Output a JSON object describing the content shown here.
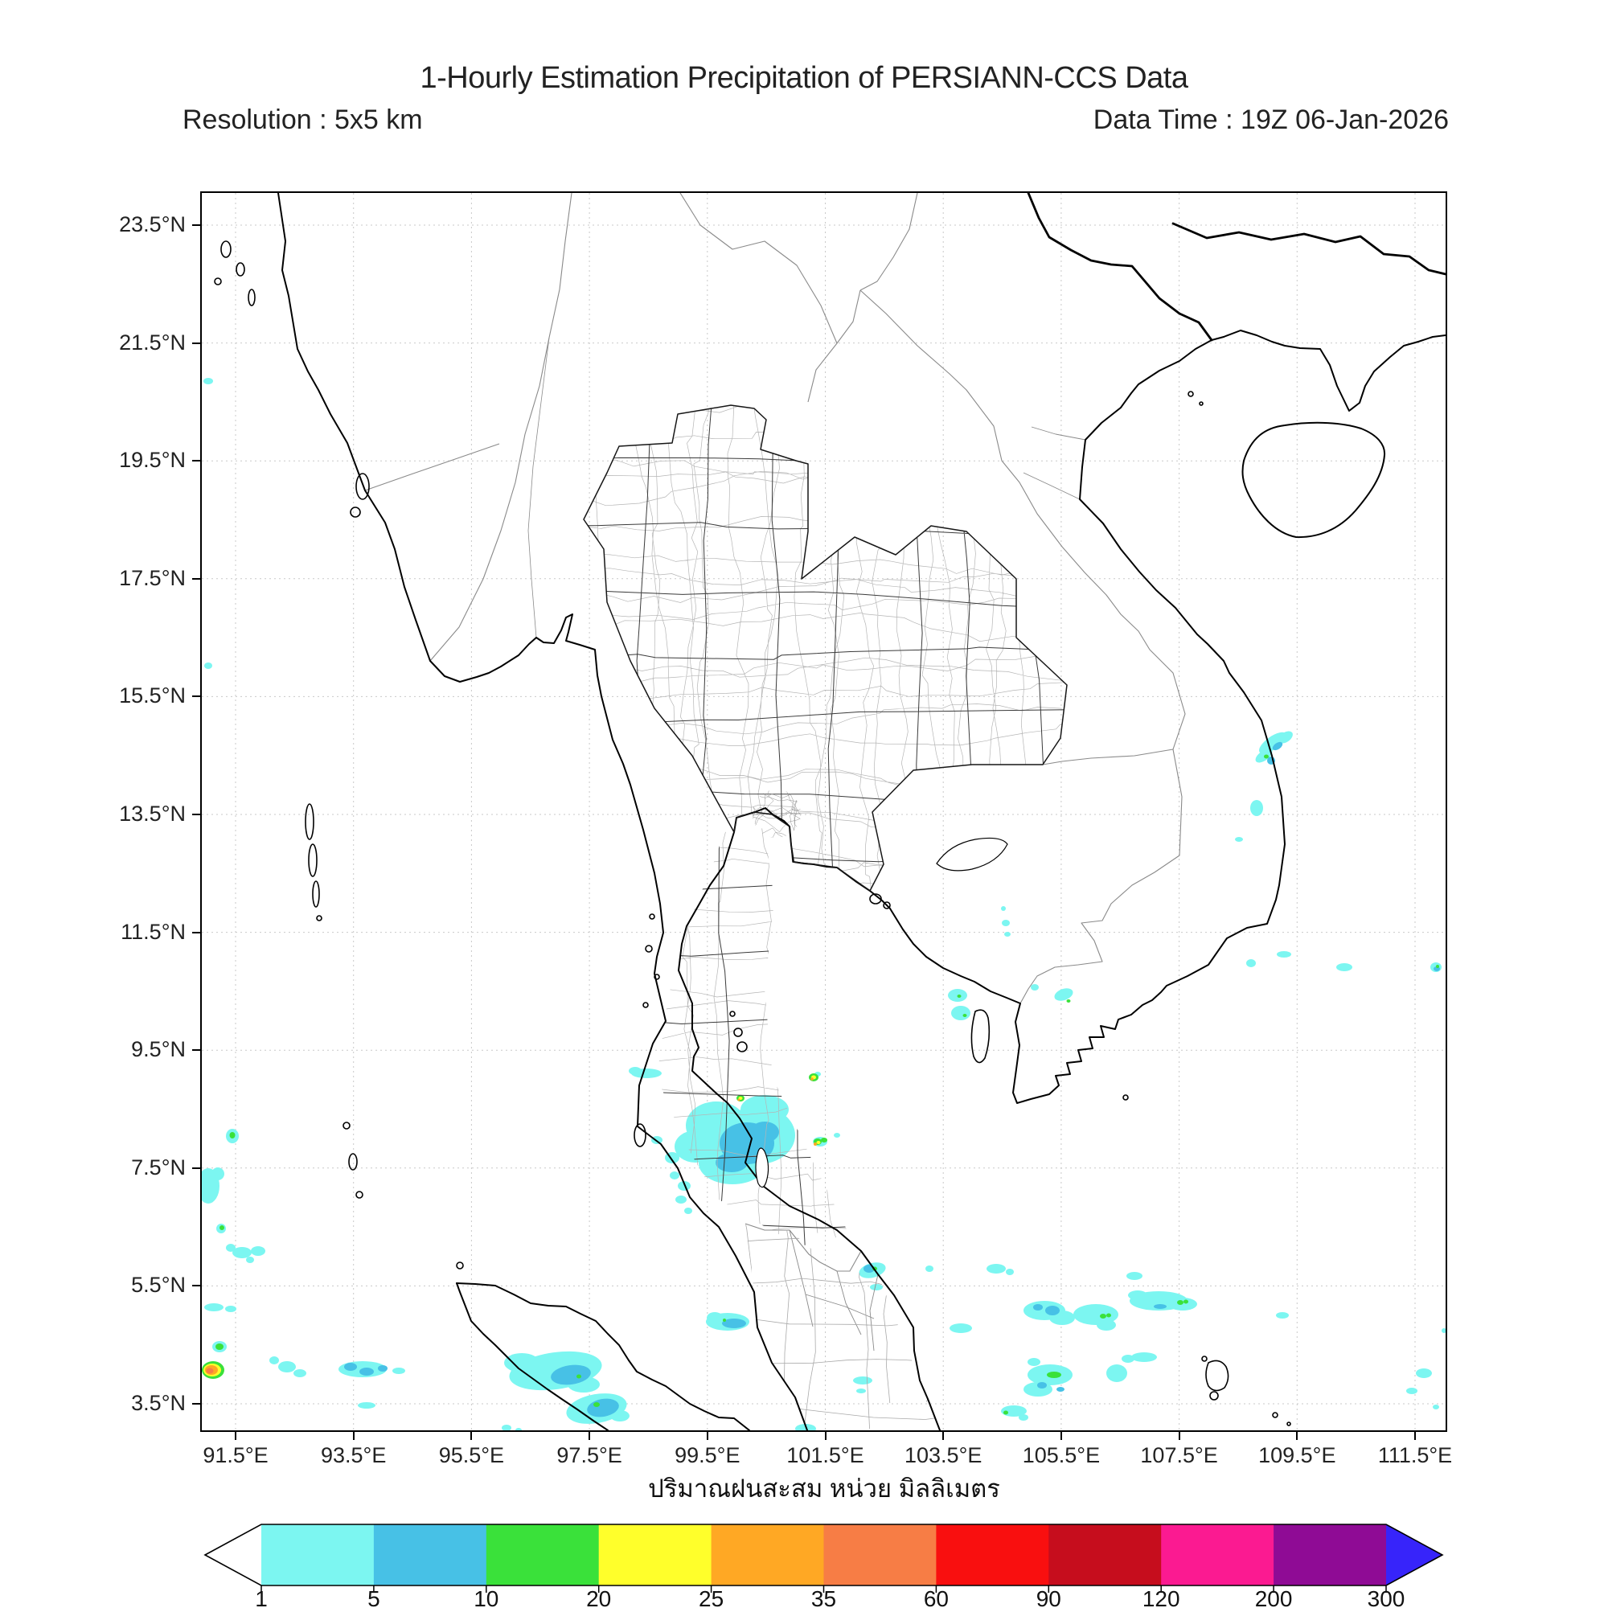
{
  "header": {
    "title": "1-Hourly Estimation Precipitation of PERSIANN-CCS Data",
    "resolution": "Resolution : 5x5 km",
    "data_time": "Data Time : 19Z 06-Jan-2026"
  },
  "map": {
    "lat_ticks": [
      "23.5°N",
      "21.5°N",
      "19.5°N",
      "17.5°N",
      "15.5°N",
      "13.5°N",
      "11.5°N",
      "9.5°N",
      "7.5°N",
      "5.5°N",
      "3.5°N"
    ],
    "lon_ticks": [
      "91.5°E",
      "93.5°E",
      "95.5°E",
      "97.5°E",
      "99.5°E",
      "101.5°E",
      "103.5°E",
      "105.5°E",
      "107.5°E",
      "109.5°E",
      "111.5°E"
    ],
    "xlabel": "ปริมาณฝนสะสม หน่วย มิลลิเมตร"
  },
  "legend": {
    "tick_labels": [
      "1",
      "5",
      "10",
      "20",
      "25",
      "35",
      "60",
      "90",
      "120",
      "200",
      "300"
    ],
    "segment_keys": [
      "c1",
      "c2",
      "c3",
      "c4",
      "c5",
      "c6",
      "c7",
      "c8",
      "c9",
      "c10"
    ],
    "colors": {
      "c1": "#7cf6f1",
      "c2": "#47c1e6",
      "c3": "#3ae13a",
      "c4": "#ffff2b",
      "c5": "#ffa824",
      "c6": "#f77d45",
      "c7": "#f90f0f",
      "c8": "#c60d1d",
      "c9": "#fb1a91",
      "c10": "#8f0b95"
    },
    "under_color": "#ffffff",
    "over_color": "#3724fa",
    "line_color": "#000000"
  },
  "precip": {
    "cells": [
      [
        640,
        1160,
        38,
        30,
        "c1",
        0
      ],
      [
        692,
        1172,
        46,
        36,
        "c1",
        0
      ],
      [
        660,
        1207,
        42,
        26,
        "c1",
        0
      ],
      [
        614,
        1186,
        26,
        20,
        "c1",
        0
      ],
      [
        700,
        1140,
        30,
        18,
        "c1",
        0
      ],
      [
        600,
        1235,
        8,
        6,
        "c1",
        0
      ],
      [
        588,
        1222,
        6,
        5,
        "c1",
        0
      ],
      [
        596,
        1252,
        7,
        5,
        "c1",
        0
      ],
      [
        605,
        1266,
        5,
        4,
        "c1",
        0
      ],
      [
        585,
        1200,
        9,
        7,
        "c1",
        0
      ],
      [
        566,
        1178,
        7,
        5,
        "c1",
        0
      ],
      [
        553,
        1095,
        19,
        6,
        "c1",
        0
      ],
      [
        539,
        1092,
        8,
        5,
        "c1",
        0
      ],
      [
        766,
        1096,
        4,
        3,
        "c1",
        0
      ],
      [
        769,
        1180,
        9,
        6,
        "c1",
        0
      ],
      [
        790,
        1172,
        4,
        3,
        "c1",
        0
      ],
      [
        834,
        1340,
        17,
        9,
        "c1",
        -15
      ],
      [
        839,
        1361,
        8,
        4,
        "c1",
        0
      ],
      [
        654,
        1404,
        27,
        11,
        "c1",
        0
      ],
      [
        638,
        1399,
        10,
        7,
        "c1",
        0
      ],
      [
        440,
        1465,
        58,
        23,
        "c1",
        -8
      ],
      [
        398,
        1455,
        22,
        12,
        "c1",
        0
      ],
      [
        475,
        1482,
        20,
        10,
        "c1",
        0
      ],
      [
        491,
        1512,
        38,
        18,
        "c1",
        -10
      ],
      [
        520,
        1521,
        12,
        7,
        "c1",
        0
      ],
      [
        751,
        1537,
        13,
        6,
        "c1",
        0
      ],
      [
        379,
        1536,
        6,
        4,
        "c1",
        0
      ],
      [
        394,
        1539,
        4,
        3,
        "c1",
        0
      ],
      [
        38,
        1173,
        8,
        9,
        "c1",
        0
      ],
      [
        8,
        1235,
        14,
        22,
        "c1",
        0
      ],
      [
        20,
        1220,
        8,
        8,
        "c1",
        0
      ],
      [
        24,
        1288,
        6,
        6,
        "c1",
        0
      ],
      [
        50,
        1318,
        12,
        7,
        "c1",
        0
      ],
      [
        70,
        1316,
        9,
        6,
        "c1",
        0
      ],
      [
        36,
        1312,
        6,
        5,
        "c1",
        0
      ],
      [
        60,
        1327,
        5,
        4,
        "c1",
        0
      ],
      [
        15,
        1386,
        12,
        5,
        "c1",
        0
      ],
      [
        36,
        1388,
        7,
        4,
        "c1",
        0
      ],
      [
        22,
        1435,
        9,
        7,
        "c1",
        0
      ],
      [
        106,
        1460,
        11,
        7,
        "c1",
        0
      ],
      [
        122,
        1468,
        8,
        5,
        "c1",
        0
      ],
      [
        90,
        1452,
        6,
        5,
        "c1",
        0
      ],
      [
        200,
        1463,
        30,
        10,
        "c1",
        0
      ],
      [
        245,
        1465,
        8,
        4,
        "c1",
        0
      ],
      [
        1048,
        1390,
        26,
        12,
        "c1",
        0
      ],
      [
        1070,
        1399,
        16,
        9,
        "c1",
        0
      ],
      [
        1112,
        1395,
        28,
        13,
        "c1",
        0
      ],
      [
        1125,
        1408,
        12,
        7,
        "c1",
        0
      ],
      [
        1190,
        1378,
        36,
        12,
        "c1",
        0
      ],
      [
        1220,
        1382,
        18,
        8,
        "c1",
        0
      ],
      [
        1164,
        1371,
        12,
        6,
        "c1",
        0
      ],
      [
        1055,
        1470,
        28,
        13,
        "c1",
        0
      ],
      [
        1040,
        1488,
        18,
        9,
        "c1",
        0
      ],
      [
        1035,
        1454,
        8,
        5,
        "c1",
        0
      ],
      [
        1138,
        1468,
        13,
        11,
        "c1",
        0
      ],
      [
        1152,
        1450,
        8,
        5,
        "c1",
        0
      ],
      [
        1172,
        1448,
        16,
        6,
        "c1",
        0
      ],
      [
        1010,
        1515,
        16,
        7,
        "c1",
        0
      ],
      [
        1022,
        1523,
        6,
        4,
        "c1",
        0
      ],
      [
        944,
        1412,
        14,
        6,
        "c1",
        0
      ],
      [
        988,
        1338,
        12,
        6,
        "c1",
        0
      ],
      [
        1005,
        1342,
        5,
        4,
        "c1",
        0
      ],
      [
        1160,
        1347,
        10,
        5,
        "c1",
        0
      ],
      [
        905,
        1338,
        5,
        4,
        "c1",
        0
      ],
      [
        1344,
        1396,
        8,
        4,
        "c1",
        0
      ],
      [
        940,
        998,
        12,
        8,
        "c1",
        0
      ],
      [
        944,
        1020,
        12,
        9,
        "c1",
        0
      ],
      [
        1036,
        988,
        5,
        4,
        "c1",
        0
      ],
      [
        1072,
        997,
        12,
        7,
        "c1",
        -20
      ],
      [
        1000,
        908,
        5,
        4,
        "c1",
        0
      ],
      [
        1002,
        922,
        4,
        3,
        "c1",
        0
      ],
      [
        997,
        890,
        3,
        3,
        "c1",
        0
      ],
      [
        1332,
        684,
        20,
        8,
        "c1",
        -35
      ],
      [
        1348,
        677,
        10,
        6,
        "c1",
        -35
      ],
      [
        1321,
        700,
        12,
        6,
        "c1",
        -35
      ],
      [
        1312,
        765,
        8,
        10,
        "c1",
        0
      ],
      [
        1290,
        804,
        5,
        3,
        "c1",
        0
      ],
      [
        1305,
        958,
        6,
        5,
        "c1",
        0
      ],
      [
        1346,
        947,
        9,
        4,
        "c1",
        0
      ],
      [
        1421,
        963,
        10,
        5,
        "c1",
        0
      ],
      [
        1535,
        963,
        7,
        6,
        "c1",
        0
      ],
      [
        822,
        1477,
        12,
        5,
        "c1",
        0
      ],
      [
        820,
        1490,
        6,
        3,
        "c1",
        0
      ],
      [
        8,
        234,
        6,
        4,
        "c1",
        0
      ],
      [
        8,
        588,
        5,
        4,
        "c1",
        0
      ],
      [
        205,
        1508,
        11,
        4,
        "c1",
        0
      ],
      [
        1520,
        1468,
        10,
        6,
        "c1",
        0
      ],
      [
        1505,
        1490,
        7,
        4,
        "c1",
        0
      ],
      [
        1535,
        1510,
        4,
        3,
        "c1",
        0
      ],
      [
        1545,
        1415,
        3,
        3,
        "c1",
        0
      ],
      [
        678,
        1182,
        34,
        26,
        "c2",
        0
      ],
      [
        700,
        1168,
        18,
        13,
        "c2",
        0
      ],
      [
        659,
        1206,
        20,
        12,
        "c2",
        0
      ],
      [
        830,
        1338,
        7,
        5,
        "c2",
        0
      ],
      [
        662,
        1406,
        15,
        6,
        "c2",
        0
      ],
      [
        459,
        1470,
        25,
        12,
        "c2",
        -8
      ],
      [
        499,
        1511,
        20,
        11,
        "c2",
        -10
      ],
      [
        185,
        1460,
        8,
        5,
        "c2",
        0
      ],
      [
        205,
        1466,
        9,
        5,
        "c2",
        0
      ],
      [
        225,
        1462,
        6,
        4,
        "c2",
        0
      ],
      [
        1058,
        1390,
        9,
        6,
        "c2",
        0
      ],
      [
        1040,
        1386,
        6,
        4,
        "c2",
        0
      ],
      [
        1192,
        1385,
        8,
        3,
        "c2",
        0
      ],
      [
        1045,
        1483,
        6,
        4,
        "c2",
        0
      ],
      [
        1068,
        1488,
        5,
        3,
        "c2",
        0
      ],
      [
        1338,
        688,
        7,
        4,
        "c2",
        -35
      ],
      [
        1330,
        706,
        5,
        5,
        "c2",
        0
      ],
      [
        1536,
        965,
        4,
        3,
        "c2",
        0
      ],
      [
        670,
        1126,
        5,
        4,
        "c3",
        0
      ],
      [
        766,
        1180,
        5,
        4,
        "c3",
        0
      ],
      [
        774,
        1178,
        4,
        3,
        "c3",
        0
      ],
      [
        761,
        1100,
        6,
        5,
        "c3",
        0
      ],
      [
        837,
        1338,
        3,
        2.5,
        "c3",
        0
      ],
      [
        650,
        1402,
        2,
        2,
        "c3",
        0
      ],
      [
        469,
        1472,
        3,
        2.5,
        "c3",
        0
      ],
      [
        491,
        1507,
        4,
        3,
        "c3",
        0
      ],
      [
        38,
        1172,
        3.5,
        4,
        "c3",
        0
      ],
      [
        25,
        1287,
        3,
        3,
        "c3",
        0
      ],
      [
        22,
        1435,
        5,
        4,
        "c3",
        0
      ],
      [
        14,
        1464,
        14,
        11,
        "c3",
        0
      ],
      [
        1121,
        1397,
        4,
        3,
        "c3",
        0
      ],
      [
        1128,
        1396,
        3,
        2.5,
        "c3",
        0
      ],
      [
        1217,
        1380,
        4,
        3,
        "c3",
        0
      ],
      [
        1224,
        1379,
        3,
        2.5,
        "c3",
        0
      ],
      [
        1060,
        1470,
        9,
        4,
        "c3",
        0
      ],
      [
        1000,
        1517,
        3,
        2.5,
        "c3",
        0
      ],
      [
        942,
        999,
        2.5,
        2,
        "c3",
        0
      ],
      [
        949,
        1023,
        2.5,
        2,
        "c3",
        0
      ],
      [
        1078,
        1005,
        2.5,
        2,
        "c3",
        0
      ],
      [
        1324,
        701,
        3,
        2.5,
        "c3",
        0
      ],
      [
        1537,
        962,
        2,
        2,
        "c3",
        0
      ],
      [
        670,
        1126,
        2.5,
        2,
        "c4",
        0
      ],
      [
        767,
        1181,
        2.5,
        2,
        "c4",
        0
      ],
      [
        761,
        1100,
        3,
        2.5,
        "c4",
        0
      ],
      [
        13,
        1464,
        11,
        8,
        "c4",
        0
      ],
      [
        668,
        1128,
        1.5,
        1.5,
        "c5",
        0
      ],
      [
        763,
        1183,
        2,
        2,
        "c5",
        0
      ],
      [
        759,
        1102,
        1.8,
        1.8,
        "c5",
        0
      ],
      [
        12,
        1464,
        8,
        6,
        "c5",
        0
      ],
      [
        10,
        1465,
        4.5,
        3.5,
        "c6",
        0
      ]
    ]
  }
}
